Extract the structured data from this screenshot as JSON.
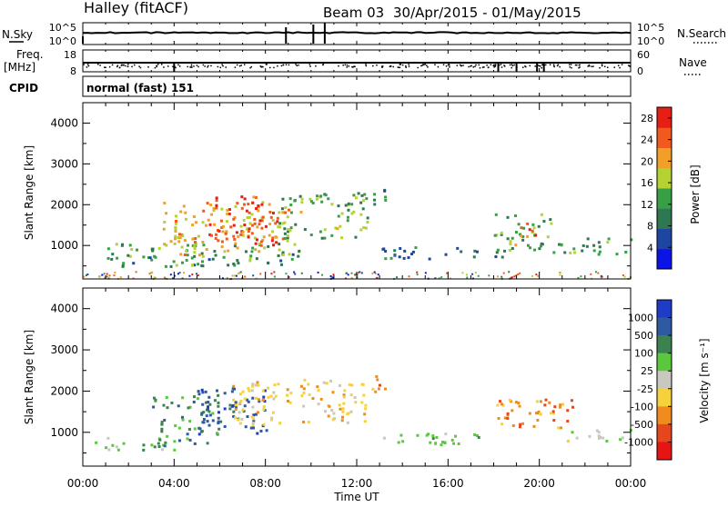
{
  "header": {
    "station": "Halley (fitACF)",
    "beam": "Beam 03",
    "dates": "30/Apr/2015 - 01/May/2015"
  },
  "top_panels": {
    "nsky_label": "N.Sky",
    "nsky_ticks": [
      "10^5",
      "10^0"
    ],
    "nsky_right_ticks": [
      "10^5",
      "10^0"
    ],
    "nsearch_label": "N.Search",
    "freq_label_1": "Freq.",
    "freq_label_2": "[MHz]",
    "freq_ticks": [
      "18",
      "8"
    ],
    "nave_ticks": [
      "60",
      "0"
    ],
    "nave_label": "Nave",
    "cpid_label": "CPID",
    "cpid_value": "normal (fast) 151"
  },
  "chart_data": [
    {
      "type": "heatmap",
      "title": "",
      "xlabel": "Time UT",
      "ylabel": "Slant Range [km]",
      "x_ticks": [
        "00:00",
        "04:00",
        "08:00",
        "12:00",
        "16:00",
        "20:00",
        "00:00"
      ],
      "xlim_hours": [
        0,
        24
      ],
      "y_ticks": [
        1000,
        2000,
        3000,
        4000
      ],
      "ylim": [
        180,
        4500
      ],
      "colorbar_label": "Power [dB]",
      "colorbar_ticks": [
        4,
        8,
        12,
        16,
        20,
        24,
        28
      ],
      "colorbar_range": [
        0,
        30
      ],
      "colors": [
        "#0a14e6",
        "#1e46a0",
        "#2d7850",
        "#37a046",
        "#b4d232",
        "#f0a028",
        "#f05a1e",
        "#e61e14"
      ],
      "regions": [
        {
          "t": [
            1.0,
            9.5
          ],
          "r": [
            500,
            1100
          ],
          "value": 12
        },
        {
          "t": [
            3.5,
            9.0
          ],
          "r": [
            800,
            2100
          ],
          "value": 20
        },
        {
          "t": [
            5.5,
            8.5
          ],
          "r": [
            1000,
            2300
          ],
          "value": 26
        },
        {
          "t": [
            8.5,
            12.5
          ],
          "r": [
            1200,
            2300
          ],
          "value": 14
        },
        {
          "t": [
            12.0,
            13.5
          ],
          "r": [
            2000,
            2400
          ],
          "value": 10
        },
        {
          "t": [
            13.0,
            18.5
          ],
          "r": [
            700,
            1000
          ],
          "value": 8
        },
        {
          "t": [
            18.0,
            20.5
          ],
          "r": [
            900,
            1800
          ],
          "value": 14
        },
        {
          "t": [
            19.0,
            20.0
          ],
          "r": [
            1200,
            1600
          ],
          "value": 24
        },
        {
          "t": [
            20.5,
            24.0
          ],
          "r": [
            800,
            1200
          ],
          "value": 12
        }
      ]
    },
    {
      "type": "heatmap",
      "title": "",
      "xlabel": "Time UT",
      "ylabel": "Slant Range [km]",
      "x_ticks": [
        "00:00",
        "04:00",
        "08:00",
        "12:00",
        "16:00",
        "20:00",
        "00:00"
      ],
      "xlim_hours": [
        0,
        24
      ],
      "y_ticks": [
        1000,
        2000,
        3000,
        4000
      ],
      "ylim": [
        180,
        4500
      ],
      "colorbar_label": "Velocity [m s⁻¹]",
      "colorbar_ticks": [
        "1000",
        "500",
        "100",
        "25",
        "-25",
        "-100",
        "-500",
        "-1000"
      ],
      "colors": [
        "#1e3cc8",
        "#2d5aa0",
        "#3c8250",
        "#5ac83c",
        "#c8c8be",
        "#f5d23c",
        "#f08c1e",
        "#e6461e",
        "#e61414"
      ],
      "regions": [
        {
          "t": [
            0.5,
            4.0
          ],
          "r": [
            600,
            900
          ],
          "value": "25"
        },
        {
          "t": [
            3.0,
            6.0
          ],
          "r": [
            700,
            1900
          ],
          "value": "100"
        },
        {
          "t": [
            5.0,
            8.0
          ],
          "r": [
            900,
            2100
          ],
          "value": "500"
        },
        {
          "t": [
            6.5,
            12.5
          ],
          "r": [
            1200,
            2300
          ],
          "value": "-100"
        },
        {
          "t": [
            12.5,
            13.5
          ],
          "r": [
            2000,
            2400
          ],
          "value": "-500"
        },
        {
          "t": [
            13.0,
            18.0
          ],
          "r": [
            700,
            1000
          ],
          "value": "25"
        },
        {
          "t": [
            18.0,
            21.5
          ],
          "r": [
            1100,
            1900
          ],
          "value": "-500"
        },
        {
          "t": [
            21.0,
            24.0
          ],
          "r": [
            800,
            1100
          ],
          "value": "-25"
        }
      ]
    }
  ]
}
